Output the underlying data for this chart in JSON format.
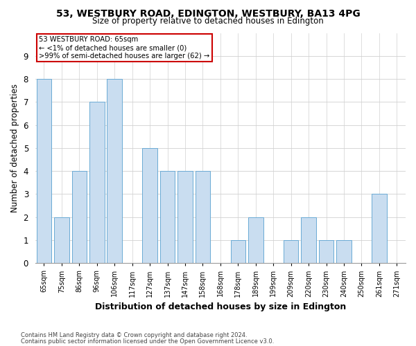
{
  "title_line1": "53, WESTBURY ROAD, EDINGTON, WESTBURY, BA13 4PG",
  "title_line2": "Size of property relative to detached houses in Edington",
  "xlabel": "Distribution of detached houses by size in Edington",
  "ylabel": "Number of detached properties",
  "categories": [
    "65sqm",
    "75sqm",
    "86sqm",
    "96sqm",
    "106sqm",
    "117sqm",
    "127sqm",
    "137sqm",
    "147sqm",
    "158sqm",
    "168sqm",
    "178sqm",
    "189sqm",
    "199sqm",
    "209sqm",
    "220sqm",
    "230sqm",
    "240sqm",
    "250sqm",
    "261sqm",
    "271sqm"
  ],
  "values": [
    8,
    2,
    4,
    7,
    8,
    0,
    5,
    4,
    4,
    4,
    0,
    1,
    2,
    0,
    1,
    2,
    1,
    1,
    0,
    3,
    0
  ],
  "highlight_index": 0,
  "bar_color": "#c9ddf0",
  "bar_edge_color": "#6aaad4",
  "annotation_box_color": "#ffffff",
  "annotation_border_color": "#cc0000",
  "annotation_text_line1": "53 WESTBURY ROAD: 65sqm",
  "annotation_text_line2": "← <1% of detached houses are smaller (0)",
  "annotation_text_line3": ">99% of semi-detached houses are larger (62) →",
  "ylim": [
    0,
    10
  ],
  "yticks": [
    0,
    1,
    2,
    3,
    4,
    5,
    6,
    7,
    8,
    9,
    10
  ],
  "footer_line1": "Contains HM Land Registry data © Crown copyright and database right 2024.",
  "footer_line2": "Contains public sector information licensed under the Open Government Licence v3.0.",
  "background_color": "#ffffff",
  "grid_color": "#d0d0d0"
}
